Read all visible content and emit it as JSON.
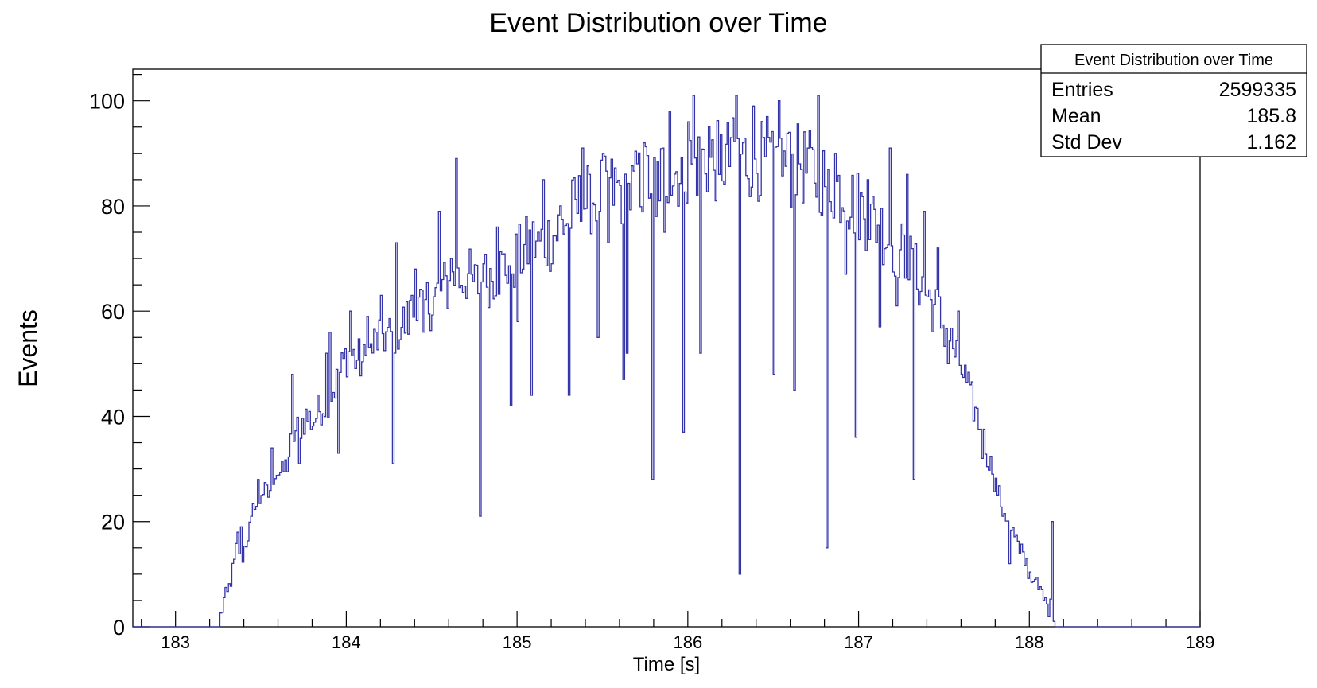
{
  "chart_data": {
    "type": "histogram",
    "title": "Event Distribution over Time",
    "xlabel": "Time [s]",
    "ylabel": "Events",
    "xlim": [
      182.75,
      189.0
    ],
    "ylim": [
      0,
      106
    ],
    "x_ticks": [
      183,
      184,
      185,
      186,
      187,
      188,
      189
    ],
    "y_ticks": [
      0,
      20,
      40,
      60,
      80,
      100
    ],
    "x_tick_labels": [
      "183",
      "184",
      "185",
      "186",
      "187",
      "188",
      "189"
    ],
    "y_tick_labels": [
      "0",
      "20",
      "40",
      "60",
      "80",
      "100"
    ],
    "line_color": "#3333aa",
    "legend_position": "top-right",
    "grid": false,
    "bins": {
      "start": 183.0,
      "width": 0.01,
      "anchors": [
        [
          183.0,
          0
        ],
        [
          183.25,
          0
        ],
        [
          183.26,
          2
        ],
        [
          183.28,
          5
        ],
        [
          183.3,
          6
        ],
        [
          183.32,
          9
        ],
        [
          183.34,
          12
        ],
        [
          183.36,
          17
        ],
        [
          183.38,
          12
        ],
        [
          183.4,
          15
        ],
        [
          183.44,
          20
        ],
        [
          183.46,
          24
        ],
        [
          183.48,
          22
        ],
        [
          183.5,
          26
        ],
        [
          183.54,
          25
        ],
        [
          183.58,
          30
        ],
        [
          183.62,
          29
        ],
        [
          183.65,
          31
        ],
        [
          183.68,
          36
        ],
        [
          183.72,
          38
        ],
        [
          183.76,
          40
        ],
        [
          183.8,
          39
        ],
        [
          183.85,
          42
        ],
        [
          183.9,
          44
        ],
        [
          183.95,
          47
        ],
        [
          184.0,
          52
        ],
        [
          184.05,
          51
        ],
        [
          184.1,
          50
        ],
        [
          184.15,
          53
        ],
        [
          184.2,
          56
        ],
        [
          184.25,
          55
        ],
        [
          184.3,
          57
        ],
        [
          184.35,
          58
        ],
        [
          184.4,
          60
        ],
        [
          184.45,
          61
        ],
        [
          184.5,
          62
        ],
        [
          184.55,
          64
        ],
        [
          184.6,
          65
        ],
        [
          184.65,
          66
        ],
        [
          184.7,
          67
        ],
        [
          184.75,
          65
        ],
        [
          184.8,
          66
        ],
        [
          184.85,
          67
        ],
        [
          184.9,
          68
        ],
        [
          184.95,
          69
        ],
        [
          185.0,
          70
        ],
        [
          185.05,
          72
        ],
        [
          185.1,
          73
        ],
        [
          185.15,
          73
        ],
        [
          185.2,
          74
        ],
        [
          185.25,
          76
        ],
        [
          185.3,
          78
        ],
        [
          185.35,
          80
        ],
        [
          185.4,
          81
        ],
        [
          185.45,
          82
        ],
        [
          185.5,
          82
        ],
        [
          185.55,
          83
        ],
        [
          185.6,
          83
        ],
        [
          185.65,
          82
        ],
        [
          185.7,
          84
        ],
        [
          185.75,
          85
        ],
        [
          185.8,
          85
        ],
        [
          185.85,
          86
        ],
        [
          185.9,
          86
        ],
        [
          185.95,
          87
        ],
        [
          186.0,
          88
        ],
        [
          186.05,
          88
        ],
        [
          186.1,
          89
        ],
        [
          186.15,
          88
        ],
        [
          186.2,
          89
        ],
        [
          186.25,
          89
        ],
        [
          186.3,
          90
        ],
        [
          186.35,
          89
        ],
        [
          186.4,
          89
        ],
        [
          186.45,
          88
        ],
        [
          186.5,
          89
        ],
        [
          186.55,
          88
        ],
        [
          186.6,
          87
        ],
        [
          186.65,
          88
        ],
        [
          186.7,
          87
        ],
        [
          186.75,
          86
        ],
        [
          186.8,
          85
        ],
        [
          186.85,
          84
        ],
        [
          186.9,
          83
        ],
        [
          186.95,
          81
        ],
        [
          187.0,
          80
        ],
        [
          187.05,
          78
        ],
        [
          187.1,
          77
        ],
        [
          187.15,
          75
        ],
        [
          187.2,
          73
        ],
        [
          187.25,
          71
        ],
        [
          187.3,
          69
        ],
        [
          187.35,
          66
        ],
        [
          187.4,
          63
        ],
        [
          187.45,
          60
        ],
        [
          187.5,
          57
        ],
        [
          187.55,
          53
        ],
        [
          187.6,
          49
        ],
        [
          187.65,
          44
        ],
        [
          187.7,
          39
        ],
        [
          187.75,
          33
        ],
        [
          187.8,
          27
        ],
        [
          187.85,
          22
        ],
        [
          187.9,
          18
        ],
        [
          187.95,
          14
        ],
        [
          188.0,
          10
        ],
        [
          188.05,
          7
        ],
        [
          188.1,
          4
        ],
        [
          188.14,
          3
        ],
        [
          188.15,
          0
        ],
        [
          189.0,
          0
        ]
      ],
      "spikes": [
        [
          183.38,
          19
        ],
        [
          183.44,
          21
        ],
        [
          183.48,
          28
        ],
        [
          183.56,
          34
        ],
        [
          183.68,
          48
        ],
        [
          183.72,
          31
        ],
        [
          183.88,
          52
        ],
        [
          183.9,
          56
        ],
        [
          183.95,
          33
        ],
        [
          184.02,
          60
        ],
        [
          184.12,
          59
        ],
        [
          184.2,
          63
        ],
        [
          184.27,
          31
        ],
        [
          184.29,
          73
        ],
        [
          184.38,
          63
        ],
        [
          184.4,
          68
        ],
        [
          184.45,
          56
        ],
        [
          184.54,
          79
        ],
        [
          184.61,
          70
        ],
        [
          184.64,
          89
        ],
        [
          184.73,
          67
        ],
        [
          184.78,
          21
        ],
        [
          184.8,
          69
        ],
        [
          184.88,
          76
        ],
        [
          184.96,
          42
        ],
        [
          185.0,
          58
        ],
        [
          185.05,
          78
        ],
        [
          185.08,
          44
        ],
        [
          185.12,
          75
        ],
        [
          185.15,
          85
        ],
        [
          185.2,
          69
        ],
        [
          185.25,
          80
        ],
        [
          185.3,
          44
        ],
        [
          185.38,
          91
        ],
        [
          185.42,
          86
        ],
        [
          185.47,
          55
        ],
        [
          185.5,
          90
        ],
        [
          185.53,
          73
        ],
        [
          185.62,
          47
        ],
        [
          185.64,
          52
        ],
        [
          185.7,
          88
        ],
        [
          185.74,
          92
        ],
        [
          185.79,
          28
        ],
        [
          185.81,
          78
        ],
        [
          185.86,
          75
        ],
        [
          185.89,
          98
        ],
        [
          185.97,
          37
        ],
        [
          186.0,
          96
        ],
        [
          186.03,
          101
        ],
        [
          186.07,
          52
        ],
        [
          186.12,
          95
        ],
        [
          186.18,
          86
        ],
        [
          186.25,
          93
        ],
        [
          186.28,
          101
        ],
        [
          186.3,
          10
        ],
        [
          186.32,
          92
        ],
        [
          186.38,
          99
        ],
        [
          186.42,
          82
        ],
        [
          186.46,
          97
        ],
        [
          186.5,
          48
        ],
        [
          186.53,
          100
        ],
        [
          186.59,
          94
        ],
        [
          186.62,
          45
        ],
        [
          186.65,
          88
        ],
        [
          186.7,
          91
        ],
        [
          186.76,
          101
        ],
        [
          186.81,
          15
        ],
        [
          186.86,
          90
        ],
        [
          186.92,
          67
        ],
        [
          186.98,
          36
        ],
        [
          187.05,
          85
        ],
        [
          187.12,
          57
        ],
        [
          187.18,
          91
        ],
        [
          187.22,
          61
        ],
        [
          187.28,
          86
        ],
        [
          187.32,
          28
        ],
        [
          187.38,
          79
        ],
        [
          187.46,
          72
        ],
        [
          187.52,
          50
        ],
        [
          187.58,
          60
        ],
        [
          187.65,
          46
        ],
        [
          187.72,
          32
        ],
        [
          187.78,
          29
        ],
        [
          187.84,
          21
        ],
        [
          187.88,
          12
        ],
        [
          187.94,
          14
        ],
        [
          187.98,
          13
        ],
        [
          188.03,
          9
        ],
        [
          188.08,
          5
        ],
        [
          188.13,
          20
        ]
      ]
    }
  },
  "stats_box": {
    "title": "Event Distribution over Time",
    "rows": [
      {
        "label": "Entries",
        "value": "2599335"
      },
      {
        "label": "Mean",
        "value": "185.8"
      },
      {
        "label": "Std Dev",
        "value": "1.162"
      }
    ]
  }
}
